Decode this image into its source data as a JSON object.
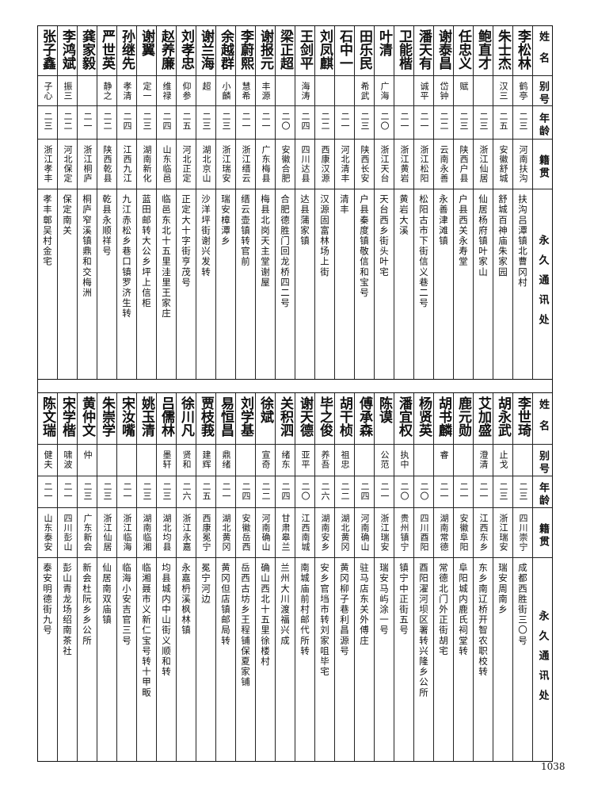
{
  "headers": {
    "name": "姓名",
    "alias": "别号",
    "age": "年龄",
    "native": "籍贯",
    "address": "永久通讯处"
  },
  "top_table": [
    {
      "name": "李松林",
      "alias": "鹤亭",
      "age": "二三",
      "native": "河南扶沟",
      "address": "扶沟吕潭镇北曹冈村"
    },
    {
      "name": "朱士杰",
      "alias": "汉三",
      "age": "二五",
      "native": "安徽舒城",
      "address": "舒城百神庙朱家园"
    },
    {
      "name": "鲍直才",
      "alias": "",
      "age": "二三",
      "native": "浙江仙居",
      "address": "仙居杨府镇叶家山"
    },
    {
      "name": "任忠义",
      "alias": "赋",
      "age": "二三",
      "native": "陕西户县",
      "address": "户县西关永寿堂"
    },
    {
      "name": "谢泰昌",
      "alias": "岱钟",
      "age": "二二",
      "native": "云南永善",
      "address": "永善津滩镇"
    },
    {
      "name": "潘天有",
      "alias": "诚平",
      "age": "二一",
      "native": "浙江松阳",
      "address": "松阳古市下街信义巷二号"
    },
    {
      "name": "卫能楷",
      "alias": "",
      "age": "二一",
      "native": "浙江黄岩",
      "address": "黄岩大溪"
    },
    {
      "name": "叶清",
      "alias": "广海",
      "age": "二〇",
      "native": "浙江天台",
      "address": "天台西乡街头叶宅"
    },
    {
      "name": "田乐民",
      "alias": "希武",
      "age": "二三",
      "native": "陕西长安",
      "address": "户县秦度镇敬信和宝号"
    },
    {
      "name": "石中一",
      "alias": "",
      "age": "二一",
      "native": "河北清丰",
      "address": "清丰"
    },
    {
      "name": "刘凤麒",
      "alias": "",
      "age": "二二",
      "native": "西康汉源",
      "address": "汉源固富林场上街"
    },
    {
      "name": "王剑平",
      "alias": "海涛",
      "age": "二四",
      "native": "四川达县",
      "address": "达县蒲家镇"
    },
    {
      "name": "梁正超",
      "alias": "",
      "age": "二〇",
      "native": "安徽合肥",
      "address": "合肥德胜门回龙桥四二号"
    },
    {
      "name": "谢报元",
      "alias": "丰源",
      "age": "二一",
      "native": "广东梅县",
      "address": "梅县北岗天主堂谢屋"
    },
    {
      "name": "李蔚熙",
      "alias": "慧希",
      "age": "二一",
      "native": "浙江缙云",
      "address": "缙云壶镇转官前"
    },
    {
      "name": "余越群",
      "alias": "小麟",
      "age": "二三",
      "native": "浙江瑞安",
      "address": "瑞安樟潭乡"
    },
    {
      "name": "谢兰海",
      "alias": "超",
      "age": "二三",
      "native": "湖北京山",
      "address": "沙洋坪街谢兴发转"
    },
    {
      "name": "刘孝忠",
      "alias": "仰参",
      "age": "二五",
      "native": "河北正定",
      "address": "正定大十字街亨茂号"
    },
    {
      "name": "赵养廉",
      "alias": "维禄",
      "age": "二四",
      "native": "山东临邑",
      "address": "临邑东北十五里洼里王家庄"
    },
    {
      "name": "谢翼",
      "alias": "定一",
      "age": "二三",
      "native": "湖南新化",
      "address": "蓝田邮转大公乡坪上信柜"
    },
    {
      "name": "孙继先",
      "alias": "孝清",
      "age": "二四",
      "native": "江西九江",
      "address": "九江赤松乡巷口镇罗济生转"
    },
    {
      "name": "严世英",
      "alias": "静之",
      "age": "二二",
      "native": "陕西乾县",
      "address": "乾县永顺祥号"
    },
    {
      "name": "龚家毅",
      "alias": "",
      "age": "二一",
      "native": "浙江桐庐",
      "address": "桐庐窄溪镇鼎和交梅洲"
    },
    {
      "name": "李鸿斌",
      "alias": "振三",
      "age": "二二",
      "native": "河北保定",
      "address": "保定南关"
    },
    {
      "name": "张子鑫",
      "alias": "子心",
      "age": "二三",
      "native": "浙江孝丰",
      "address": "孝丰鄣吴村金宅"
    }
  ],
  "bottom_table": [
    {
      "name": "李世琦",
      "alias": "",
      "age": "二三",
      "native": "四川崇宁",
      "address": "成都西胜街三〇号"
    },
    {
      "name": "胡永武",
      "alias": "止戈",
      "age": "二三",
      "native": "浙江瑞安",
      "address": "瑞安周南乡"
    },
    {
      "name": "艾加盛",
      "alias": "澄清",
      "age": "二一",
      "native": "江西东乡",
      "address": "东乡南辽桥开智农职校转"
    },
    {
      "name": "鹿元勋",
      "alias": "",
      "age": "二一",
      "native": "安徽阜阳",
      "address": "阜阳城内鹿氏祠堂转"
    },
    {
      "name": "胡书麟",
      "alias": "睿",
      "age": "二一",
      "native": "湖南常德",
      "address": "常德北门外正街胡宅"
    },
    {
      "name": "杨贤英",
      "alias": "",
      "age": "二〇",
      "native": "四川酉阳",
      "address": "酉阳濯河坝区署转兴隆乡公所"
    },
    {
      "name": "潘宜权",
      "alias": "执中",
      "age": "二〇",
      "native": "贵州镇宁",
      "address": "镇宁中正街五号"
    },
    {
      "name": "陈谟",
      "alias": "公范",
      "age": "二一",
      "native": "浙江瑞安",
      "address": "瑞安马屿涂一号"
    },
    {
      "name": "傅承森",
      "alias": "",
      "age": "二四",
      "native": "河南确山",
      "address": "驻马店东关外傅庄"
    },
    {
      "name": "胡干桢",
      "alias": "祖忠",
      "age": "二二",
      "native": "湖北黄冈",
      "address": "黄冈柳子巷利昌源号"
    },
    {
      "name": "毕之俊",
      "alias": "养吾",
      "age": "二六",
      "native": "湖南安乡",
      "address": "安乡官垱市转刘家咀毕宅"
    },
    {
      "name": "谢天德",
      "alias": "亚平",
      "age": "二〇",
      "native": "江西南城",
      "address": "南城庙前村邮代所转"
    },
    {
      "name": "关积泗",
      "alias": "绪东",
      "age": "二四",
      "native": "甘肃皋兰",
      "address": "兰州大川渡福兴成"
    },
    {
      "name": "徐斌",
      "alias": "宣奇",
      "age": "二二",
      "native": "河南确山",
      "address": "确山西北十五里徐楼村"
    },
    {
      "name": "刘学基",
      "alias": "",
      "age": "二四",
      "native": "安徽岳西",
      "address": "岳西古坊乡王程铺保夏家铺"
    },
    {
      "name": "易恒昌",
      "alias": "鼎绪",
      "age": "二一",
      "native": "湖北黄冈",
      "address": "黄冈但店镇邮局转"
    },
    {
      "name": "贾枝莪",
      "alias": "建辉",
      "age": "二五",
      "native": "西康冕宁",
      "address": "冕宁河边"
    },
    {
      "name": "徐川凡",
      "alias": "贤和",
      "age": "二六",
      "native": "浙江永嘉",
      "address": "永嘉枬溪枫林镇"
    },
    {
      "name": "吕儒林",
      "alias": "墨轩",
      "age": "二三",
      "native": "湖北均县",
      "address": "均县城内中山街义顺和转"
    },
    {
      "name": "姚玉清",
      "alias": "",
      "age": "二三",
      "native": "湖南临湘",
      "address": "临湘聂市义新仁宝号转十甲畈"
    },
    {
      "name": "宋汝嘴",
      "alias": "",
      "age": "二一",
      "native": "浙江临海",
      "address": "临海小安吉官三号"
    },
    {
      "name": "朱崇学",
      "alias": "",
      "age": "二三",
      "native": "浙江仙居",
      "address": "仙居南双庙镇"
    },
    {
      "name": "黄仲文",
      "alias": "仲",
      "age": "二三",
      "native": "广东新会",
      "address": "新会杜阮乡乡公所"
    },
    {
      "name": "宋学楷",
      "alias": "啸波",
      "age": "二一",
      "native": "四川彭山",
      "address": "彭山青龙场绍南茶社"
    },
    {
      "name": "陈文瑞",
      "alias": "健夫",
      "age": "二一",
      "native": "山东泰安",
      "address": "泰安明德街九号"
    }
  ],
  "page_number": "1038"
}
